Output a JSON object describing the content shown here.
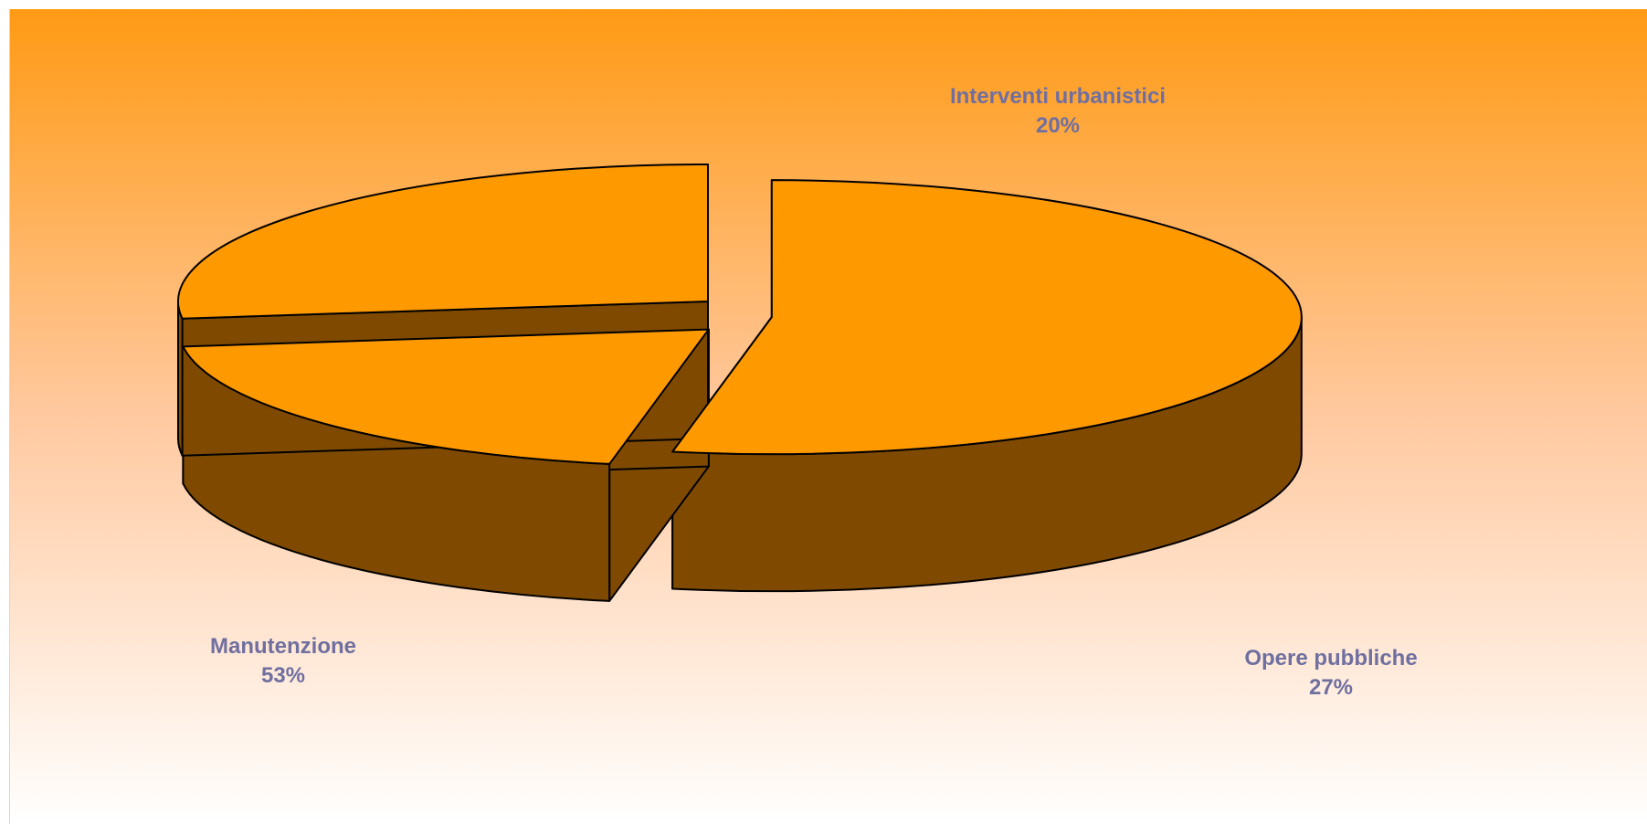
{
  "chart_data": {
    "type": "pie",
    "style": "3d-exploded",
    "title": "",
    "slices": [
      {
        "label": "Manutenzione",
        "percent_label": "53%",
        "value": 53
      },
      {
        "label": "Interventi urbanistici",
        "percent_label": "20%",
        "value": 20
      },
      {
        "label": "Opere pubbliche",
        "percent_label": "27%",
        "value": 27
      }
    ],
    "legend": "none",
    "colors": {
      "slice_top": "#FF9900",
      "slice_side": "#7F4A00",
      "outline": "#000000",
      "label_text": "#6F6FA0",
      "background_top": "#FF9A14",
      "background_bottom": "#FFFFFF",
      "frame_line": "#E8E84A"
    }
  }
}
